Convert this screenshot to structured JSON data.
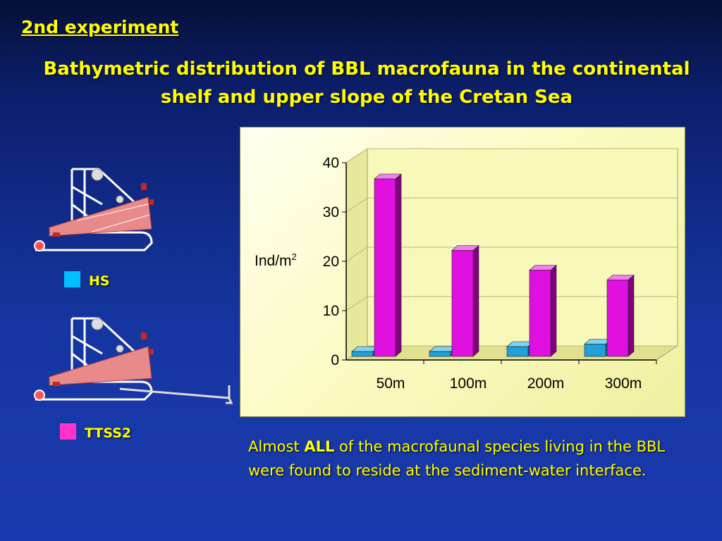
{
  "slide": {
    "label": "2nd experiment",
    "title_line1": "Bathymetric distribution of BBL macrofauna in the continental",
    "title_line2": "shelf and upper slope of the Cretan Sea"
  },
  "legend": [
    {
      "name": "HS",
      "color": "#00bfff"
    },
    {
      "name": "TTSS2",
      "color": "#ff33cc"
    }
  ],
  "caption": {
    "before": "Almost ",
    "emphasis": "ALL",
    "after": " of the macrofaunal species living in the BBL were found to reside at the sediment-water interface."
  },
  "colors": {
    "title": "#ffff00",
    "background": "#1536a0",
    "chart_panel": "#fbfbc4",
    "hs_bar": "#1ea0d8",
    "ttss2_bar": "#e010e0",
    "sled_net": "#e88a8a"
  },
  "chart_data": {
    "type": "bar",
    "categories": [
      "50m",
      "100m",
      "200m",
      "300m"
    ],
    "series": [
      {
        "name": "HS",
        "values": [
          1,
          1,
          2,
          2.5
        ]
      },
      {
        "name": "TTSS2",
        "values": [
          36,
          21.5,
          17.5,
          15.5
        ]
      }
    ],
    "ylabel_base": "Ind/m",
    "ylabel_sup": "2",
    "yticks": [
      "0",
      "10",
      "20",
      "30",
      "40"
    ],
    "ylim": [
      0,
      40
    ],
    "grid": true,
    "style": "3d-clustered-column"
  }
}
